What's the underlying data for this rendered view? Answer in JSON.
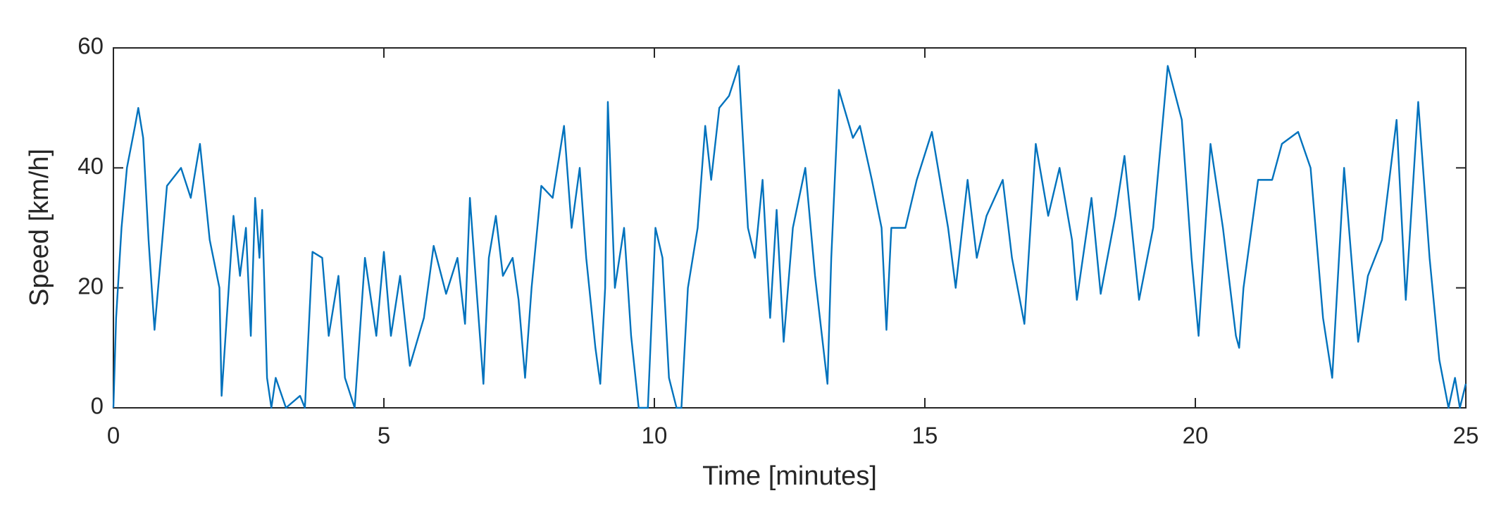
{
  "chart_data": {
    "type": "line",
    "x_label": "Time [minutes]",
    "y_label": "Speed [km/h]",
    "xlim": [
      0,
      25
    ],
    "ylim": [
      0,
      60
    ],
    "xticks": [
      0,
      5,
      10,
      15,
      20,
      25
    ],
    "yticks": [
      0,
      20,
      40,
      60
    ],
    "grid": false,
    "x": [
      0,
      0.05,
      0.15,
      0.25,
      0.4,
      0.46,
      0.55,
      0.65,
      0.76,
      0.99,
      1.25,
      1.43,
      1.6,
      1.78,
      1.96,
      2.0,
      2.22,
      2.34,
      2.45,
      2.54,
      2.62,
      2.7,
      2.75,
      2.84,
      2.92,
      3.0,
      3.19,
      3.45,
      3.54,
      3.68,
      3.86,
      3.98,
      4.16,
      4.28,
      4.46,
      4.65,
      4.86,
      5.0,
      5.13,
      5.3,
      5.48,
      5.74,
      5.92,
      6.15,
      6.36,
      6.5,
      6.59,
      6.71,
      6.84,
      6.94,
      7.07,
      7.2,
      7.38,
      7.49,
      7.61,
      7.73,
      7.91,
      8.12,
      8.33,
      8.47,
      8.62,
      8.74,
      8.91,
      9.0,
      9.09,
      9.14,
      9.27,
      9.44,
      9.57,
      9.71,
      9.88,
      10.02,
      10.15,
      10.27,
      10.41,
      10.5,
      10.62,
      10.8,
      10.94,
      11.05,
      11.2,
      11.38,
      11.56,
      11.73,
      11.86,
      12.0,
      12.14,
      12.26,
      12.39,
      12.56,
      12.79,
      12.97,
      13.2,
      13.27,
      13.41,
      13.67,
      13.8,
      14.02,
      14.2,
      14.29,
      14.38,
      14.64,
      14.85,
      15.13,
      15.43,
      15.57,
      15.79,
      15.96,
      16.14,
      16.44,
      16.61,
      16.84,
      17.05,
      17.28,
      17.49,
      17.72,
      17.81,
      18.08,
      18.25,
      18.52,
      18.69,
      18.96,
      19.22,
      19.49,
      19.75,
      19.93,
      20.06,
      20.28,
      20.51,
      20.75,
      20.81,
      20.89,
      21.16,
      21.42,
      21.6,
      21.9,
      22.13,
      22.36,
      22.53,
      22.75,
      23.01,
      23.19,
      23.45,
      23.72,
      23.89,
      24.12,
      24.33,
      24.51,
      24.68,
      24.8,
      24.89,
      25
    ],
    "series": [
      {
        "name": "Speed",
        "color": "#0072bd",
        "values": [
          0,
          15,
          30,
          40,
          47,
          50,
          45,
          28,
          13,
          37,
          40,
          35,
          44,
          28,
          20,
          2,
          32,
          22,
          30,
          12,
          35,
          25,
          33,
          5,
          0,
          5,
          0,
          2,
          0,
          26,
          25,
          12,
          22,
          5,
          0,
          25,
          12,
          26,
          12,
          22,
          7,
          15,
          27,
          19,
          25,
          14,
          35,
          20,
          4,
          25,
          32,
          22,
          25,
          18,
          5,
          20,
          37,
          35,
          47,
          30,
          40,
          25,
          10,
          4,
          20,
          51,
          20,
          30,
          12,
          0,
          0,
          30,
          25,
          5,
          0,
          0,
          20,
          30,
          47,
          38,
          50,
          52,
          57,
          30,
          25,
          38,
          15,
          33,
          11,
          30,
          40,
          22,
          4,
          25,
          53,
          45,
          47,
          38,
          30,
          13,
          30,
          30,
          38,
          46,
          30,
          20,
          38,
          25,
          32,
          38,
          25,
          14,
          44,
          32,
          40,
          28,
          18,
          35,
          19,
          32,
          42,
          18,
          30,
          57,
          48,
          25,
          12,
          44,
          30,
          12,
          10,
          20,
          38,
          38,
          44,
          46,
          40,
          15,
          5,
          40,
          11,
          22,
          28,
          48,
          18,
          51,
          25,
          8,
          0,
          5,
          0,
          4
        ]
      }
    ]
  }
}
